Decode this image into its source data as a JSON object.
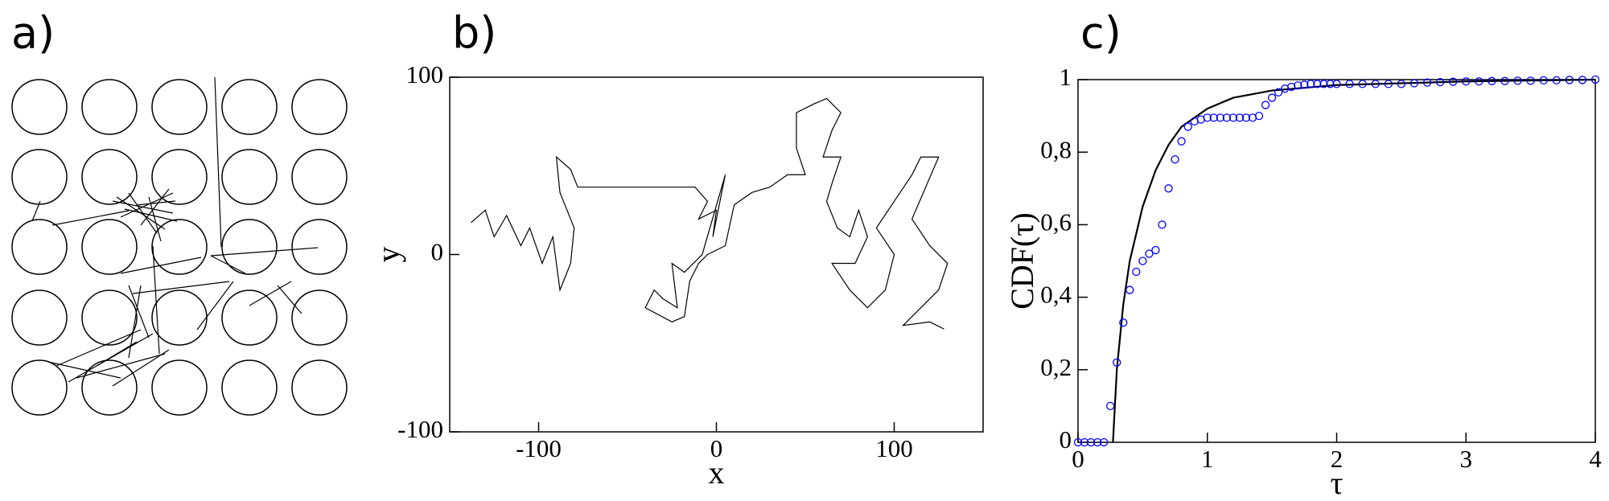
{
  "chart_data": [
    {
      "type": "network",
      "label": "a)"
    },
    {
      "type": "line",
      "label": "b)",
      "xlabel": "x",
      "ylabel": "y",
      "color": "#000000",
      "xlim": [
        -150,
        150
      ],
      "xticks": [
        -100,
        0,
        100
      ],
      "ylim": [
        -100,
        100
      ],
      "yticks": [
        -100,
        0,
        100
      ],
      "x": [
        -138,
        -130,
        -125,
        -118,
        -110,
        -105,
        -98,
        -92,
        -88,
        -82,
        -80,
        -88,
        -90,
        -82,
        -78,
        -50,
        -30,
        -12,
        -5,
        -10,
        0,
        -2,
        5,
        -8,
        -18,
        -25,
        -22,
        -30,
        -35,
        -40,
        -25,
        -18,
        -15,
        -10,
        -5,
        5,
        10,
        20,
        30,
        40,
        50,
        45,
        45,
        55,
        62,
        70,
        65,
        60,
        70,
        65,
        62,
        68,
        75,
        80,
        85,
        78,
        65,
        75,
        85,
        95,
        100,
        90,
        100,
        110,
        115,
        125,
        110,
        120,
        130,
        125,
        115,
        105,
        120,
        128
      ],
      "values": [
        18,
        25,
        10,
        22,
        5,
        15,
        -5,
        10,
        -20,
        -5,
        15,
        35,
        55,
        48,
        38,
        38,
        38,
        38,
        30,
        20,
        25,
        10,
        45,
        0,
        -10,
        -5,
        -30,
        -25,
        -20,
        -30,
        -38,
        -35,
        -15,
        -5,
        0,
        5,
        28,
        35,
        38,
        45,
        45,
        60,
        80,
        85,
        88,
        80,
        70,
        55,
        55,
        40,
        30,
        15,
        10,
        25,
        10,
        -5,
        -5,
        -20,
        -30,
        -20,
        0,
        15,
        30,
        45,
        55,
        55,
        20,
        5,
        -5,
        -20,
        -30,
        -40,
        -38,
        -42
      ]
    },
    {
      "type": "line",
      "label": "c)",
      "xlabel": "τ",
      "ylabel": "CDF(τ)",
      "xlim": [
        0,
        4
      ],
      "xticks": [
        0,
        1,
        2,
        3,
        4
      ],
      "ylim": [
        0,
        1
      ],
      "yticks": [
        0,
        {
          "value": 0.2,
          "label": "0,2"
        },
        {
          "value": 0.4,
          "label": "0,4"
        },
        {
          "value": 0.6,
          "label": "0,6"
        },
        {
          "value": 0.8,
          "label": "0,8"
        },
        1
      ],
      "series": [
        {
          "color": "#000000",
          "marker": "none",
          "x": [
            0.27,
            0.3,
            0.35,
            0.4,
            0.5,
            0.6,
            0.7,
            0.8,
            1.0,
            1.2,
            1.5,
            2,
            3,
            4
          ],
          "values": [
            0,
            0.2,
            0.38,
            0.5,
            0.65,
            0.75,
            0.82,
            0.87,
            0.92,
            0.95,
            0.97,
            0.985,
            0.995,
            1
          ]
        },
        {
          "color": "#0000ff",
          "marker": "circle",
          "x": [
            0,
            0.05,
            0.1,
            0.15,
            0.2,
            0.25,
            0.3,
            0.35,
            0.4,
            0.45,
            0.5,
            0.55,
            0.6,
            0.65,
            0.7,
            0.75,
            0.8,
            0.85,
            0.9,
            0.95,
            1.0,
            1.05,
            1.1,
            1.15,
            1.2,
            1.25,
            1.3,
            1.35,
            1.4,
            1.45,
            1.5,
            1.55,
            1.6,
            1.65,
            1.7,
            1.75,
            1.8,
            1.85,
            1.9,
            1.95,
            2.0,
            2.1,
            2.2,
            2.3,
            2.4,
            2.5,
            2.6,
            2.7,
            2.8,
            2.9,
            3.0,
            3.1,
            3.2,
            3.3,
            3.4,
            3.5,
            3.6,
            3.7,
            3.8,
            3.9,
            4.0
          ],
          "values": [
            0,
            0,
            0,
            0,
            0,
            0.1,
            0.22,
            0.33,
            0.42,
            0.47,
            0.5,
            0.52,
            0.53,
            0.6,
            0.7,
            0.78,
            0.83,
            0.87,
            0.885,
            0.89,
            0.895,
            0.895,
            0.895,
            0.895,
            0.895,
            0.895,
            0.895,
            0.895,
            0.9,
            0.93,
            0.95,
            0.965,
            0.975,
            0.98,
            0.984,
            0.986,
            0.988,
            0.988,
            0.988,
            0.988,
            0.988,
            0.988,
            0.988,
            0.988,
            0.988,
            0.988,
            0.99,
            0.992,
            0.993,
            0.994,
            0.995,
            0.995,
            0.996,
            0.996,
            0.997,
            0.997,
            0.998,
            0.998,
            0.999,
            0.999,
            1.0
          ]
        }
      ]
    }
  ]
}
